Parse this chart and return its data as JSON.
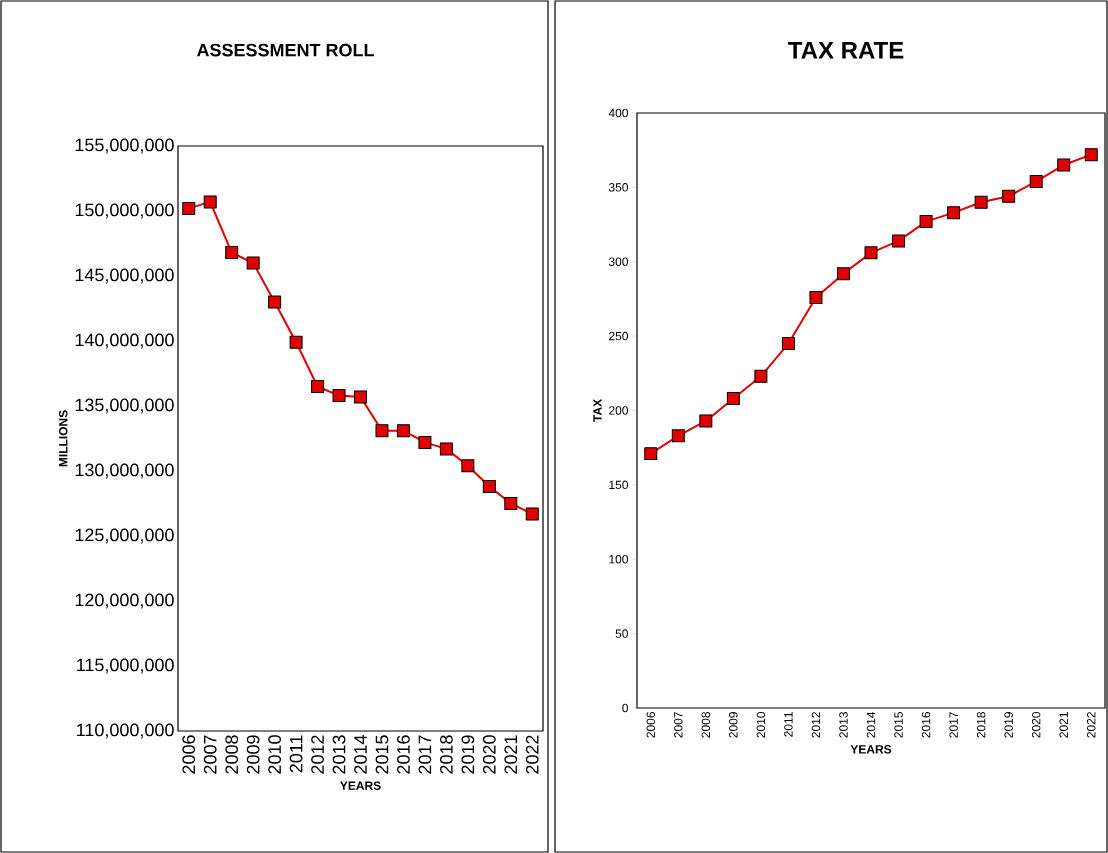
{
  "chart_data": [
    {
      "type": "line",
      "title": "ASSESSMENT ROLL",
      "xlabel": "YEARS",
      "ylabel": "MILLIONS",
      "categories": [
        "2006",
        "2007",
        "2008",
        "2009",
        "2010",
        "2011",
        "2012",
        "2013",
        "2014",
        "2015",
        "2016",
        "2017",
        "2018",
        "2019",
        "2020",
        "2021",
        "2022"
      ],
      "values": [
        150200000,
        150700000,
        146800000,
        146000000,
        143000000,
        139900000,
        136500000,
        135800000,
        135700000,
        133100000,
        133100000,
        132200000,
        131700000,
        130400000,
        128800000,
        127500000,
        126700000
      ],
      "color": "#e00000",
      "marker": "square",
      "line_style": "solid",
      "ylim": [
        110000000,
        155000000
      ],
      "yticks": [
        {
          "value": 110000000,
          "label": "110,000,000"
        },
        {
          "value": 115000000,
          "label": "115,000,000"
        },
        {
          "value": 120000000,
          "label": "120,000,000"
        },
        {
          "value": 125000000,
          "label": "125,000,000"
        },
        {
          "value": 130000000,
          "label": "130,000,000"
        },
        {
          "value": 135000000,
          "label": "135,000,000"
        },
        {
          "value": 140000000,
          "label": "140,000,000"
        },
        {
          "value": 145000000,
          "label": "145,000,000"
        },
        {
          "value": 150000000,
          "label": "150,000,000"
        },
        {
          "value": 155000000,
          "label": "155,000,000"
        }
      ]
    },
    {
      "type": "line",
      "title": "TAX RATE",
      "xlabel": "YEARS",
      "ylabel": "TAX",
      "categories": [
        "2006",
        "2007",
        "2008",
        "2009",
        "2010",
        "2011",
        "2012",
        "2013",
        "2014",
        "2015",
        "2016",
        "2017",
        "2018",
        "2019",
        "2020",
        "2021",
        "2022"
      ],
      "values": [
        171,
        183,
        193,
        208,
        223,
        245,
        276,
        292,
        306,
        314,
        327,
        333,
        340,
        344,
        354,
        365,
        372
      ],
      "color": "#e00000",
      "marker": "square",
      "line_style": "solid",
      "ylim": [
        0,
        400
      ],
      "yticks": [
        0,
        50,
        100,
        150,
        200,
        250,
        300,
        350,
        400
      ]
    }
  ]
}
